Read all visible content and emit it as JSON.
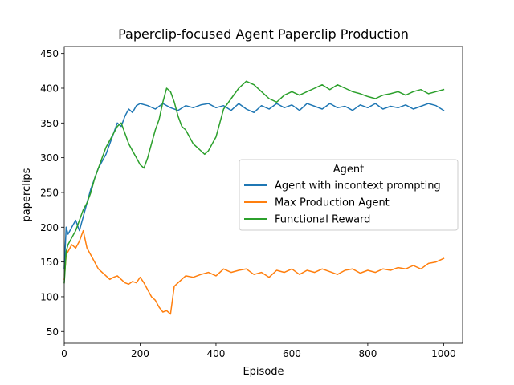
{
  "chart_data": {
    "type": "line",
    "title": "Paperclip-focused Agent Paperclip Production",
    "xlabel": "Episode",
    "ylabel": "paperclips",
    "xlim": [
      0,
      1050
    ],
    "ylim": [
      33,
      460
    ],
    "xticks": [
      0,
      200,
      400,
      600,
      800,
      1000
    ],
    "yticks": [
      50,
      100,
      150,
      200,
      250,
      300,
      350,
      400,
      450
    ],
    "grid": false,
    "legend": {
      "title": "Agent",
      "placement": "center-right"
    },
    "series": [
      {
        "name": "Agent with incontext prompting",
        "color": "#1f77b4",
        "x": [
          0,
          5,
          10,
          20,
          30,
          40,
          50,
          60,
          70,
          80,
          90,
          100,
          110,
          120,
          130,
          140,
          150,
          160,
          170,
          180,
          190,
          200,
          220,
          240,
          260,
          280,
          300,
          320,
          340,
          360,
          380,
          400,
          420,
          440,
          460,
          480,
          500,
          520,
          540,
          560,
          580,
          600,
          620,
          640,
          660,
          680,
          700,
          720,
          740,
          760,
          780,
          800,
          820,
          840,
          860,
          880,
          900,
          920,
          940,
          960,
          980,
          1000
        ],
        "y": [
          140,
          200,
          190,
          200,
          210,
          195,
          215,
          235,
          255,
          270,
          285,
          295,
          305,
          320,
          335,
          350,
          345,
          360,
          370,
          365,
          375,
          378,
          375,
          370,
          378,
          372,
          368,
          375,
          372,
          376,
          378,
          372,
          375,
          368,
          378,
          370,
          365,
          375,
          370,
          378,
          372,
          376,
          368,
          378,
          374,
          370,
          378,
          372,
          374,
          368,
          376,
          372,
          378,
          370,
          374,
          372,
          376,
          370,
          374,
          378,
          375,
          368
        ]
      },
      {
        "name": "Max Production Agent",
        "color": "#ff7f0e",
        "x": [
          0,
          5,
          10,
          20,
          30,
          40,
          50,
          60,
          70,
          80,
          90,
          100,
          110,
          120,
          130,
          140,
          150,
          160,
          170,
          180,
          190,
          200,
          210,
          220,
          230,
          240,
          250,
          260,
          270,
          280,
          290,
          300,
          320,
          340,
          360,
          380,
          400,
          420,
          440,
          460,
          480,
          500,
          520,
          540,
          560,
          580,
          600,
          620,
          640,
          660,
          680,
          700,
          720,
          740,
          760,
          780,
          800,
          820,
          840,
          860,
          880,
          900,
          920,
          940,
          960,
          980,
          1000
        ],
        "y": [
          125,
          160,
          165,
          175,
          170,
          180,
          195,
          170,
          160,
          150,
          140,
          135,
          130,
          125,
          128,
          130,
          125,
          120,
          118,
          122,
          120,
          128,
          120,
          110,
          100,
          95,
          85,
          78,
          80,
          75,
          115,
          120,
          130,
          128,
          132,
          135,
          130,
          140,
          135,
          138,
          140,
          132,
          135,
          128,
          138,
          135,
          140,
          132,
          138,
          135,
          140,
          136,
          132,
          138,
          140,
          134,
          138,
          135,
          140,
          138,
          142,
          140,
          145,
          140,
          148,
          150,
          155
        ]
      },
      {
        "name": "Functional Reward",
        "color": "#2ca02c",
        "x": [
          0,
          5,
          10,
          20,
          30,
          40,
          50,
          60,
          70,
          80,
          90,
          100,
          110,
          120,
          130,
          140,
          150,
          160,
          170,
          180,
          190,
          200,
          210,
          220,
          230,
          240,
          250,
          260,
          270,
          280,
          290,
          300,
          310,
          320,
          330,
          340,
          350,
          360,
          370,
          380,
          390,
          400,
          410,
          420,
          440,
          460,
          480,
          500,
          520,
          540,
          560,
          580,
          600,
          620,
          640,
          660,
          680,
          700,
          720,
          740,
          760,
          780,
          800,
          820,
          840,
          860,
          880,
          900,
          920,
          940,
          960,
          980,
          1000
        ],
        "y": [
          120,
          165,
          175,
          185,
          195,
          210,
          225,
          235,
          250,
          270,
          285,
          300,
          315,
          325,
          335,
          345,
          350,
          335,
          320,
          310,
          300,
          290,
          285,
          300,
          320,
          340,
          355,
          380,
          400,
          395,
          380,
          360,
          345,
          340,
          330,
          320,
          315,
          310,
          305,
          310,
          320,
          330,
          350,
          370,
          385,
          400,
          410,
          405,
          395,
          385,
          380,
          390,
          395,
          390,
          395,
          400,
          405,
          398,
          405,
          400,
          395,
          392,
          388,
          385,
          390,
          392,
          395,
          390,
          395,
          398,
          392,
          395,
          398
        ]
      }
    ]
  }
}
